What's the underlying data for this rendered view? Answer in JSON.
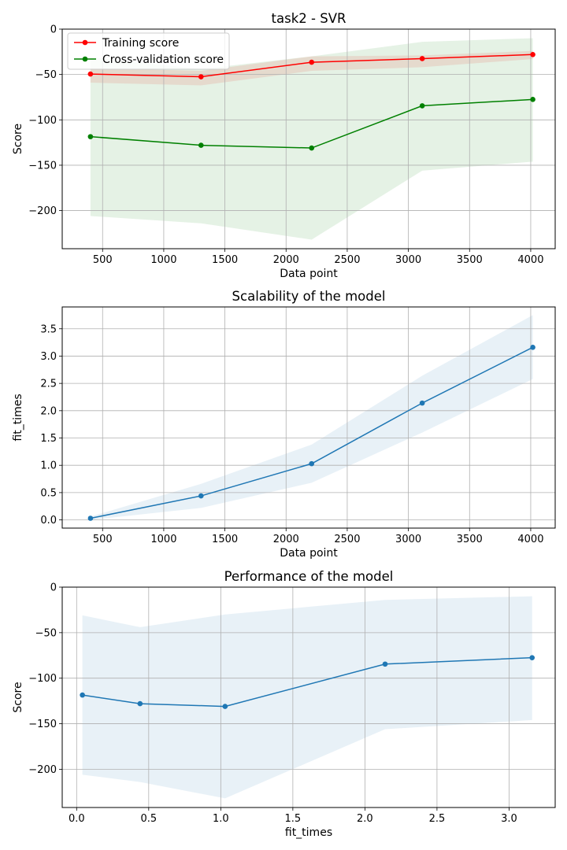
{
  "chart_data": [
    {
      "type": "line",
      "title": "task2 - SVR",
      "xlabel": "Data point",
      "ylabel": "Score",
      "xlim": [
        170,
        4200
      ],
      "ylim": [
        -242,
        0
      ],
      "xticks": [
        500,
        1000,
        1500,
        2000,
        2500,
        3000,
        3500,
        4000
      ],
      "yticks": [
        0,
        -50,
        -100,
        -150,
        -200
      ],
      "grid": true,
      "legend_position": "upper-left",
      "series": [
        {
          "name": "Training score",
          "color": "#ff0000",
          "x": [
            401,
            1305,
            2209,
            3113,
            4017
          ],
          "y": [
            -49.5,
            -52.5,
            -36.5,
            -32.5,
            -28.0
          ],
          "band_lower": [
            -59,
            -62,
            -46,
            -42,
            -33
          ],
          "band_upper": [
            -43,
            -46,
            -30,
            -29,
            -24
          ]
        },
        {
          "name": "Cross-validation score",
          "color": "#008000",
          "x": [
            401,
            1305,
            2209,
            3113,
            4017
          ],
          "y": [
            -118.5,
            -128.0,
            -131.0,
            -84.5,
            -77.5
          ],
          "band_lower": [
            -206,
            -214,
            -232,
            -156,
            -146
          ],
          "band_upper": [
            -31,
            -44,
            -30,
            -14,
            -10
          ]
        }
      ]
    },
    {
      "type": "line",
      "title": "Scalability of the model",
      "xlabel": "Data point",
      "ylabel": "fit_times",
      "xlim": [
        170,
        4200
      ],
      "ylim": [
        -0.15,
        3.9
      ],
      "xticks": [
        500,
        1000,
        1500,
        2000,
        2500,
        3000,
        3500,
        4000
      ],
      "yticks": [
        0.0,
        0.5,
        1.0,
        1.5,
        2.0,
        2.5,
        3.0,
        3.5
      ],
      "grid": true,
      "series": [
        {
          "color": "#1f77b4",
          "x": [
            401,
            1305,
            2209,
            3113,
            4017
          ],
          "y": [
            0.03,
            0.44,
            1.03,
            2.14,
            3.16
          ],
          "band_lower": [
            0.0,
            0.22,
            0.68,
            1.6,
            2.58
          ],
          "band_upper": [
            0.06,
            0.66,
            1.38,
            2.64,
            3.75
          ]
        }
      ]
    },
    {
      "type": "line",
      "title": "Performance of the model",
      "xlabel": "fit_times",
      "ylabel": "Score",
      "xlim": [
        -0.1,
        3.32
      ],
      "ylim": [
        -242,
        0
      ],
      "xticks": [
        0.0,
        0.5,
        1.0,
        1.5,
        2.0,
        2.5,
        3.0
      ],
      "yticks": [
        0,
        -50,
        -100,
        -150,
        -200
      ],
      "grid": true,
      "series": [
        {
          "color": "#1f77b4",
          "x": [
            0.04,
            0.44,
            1.03,
            2.14,
            3.16
          ],
          "y": [
            -118.5,
            -128.0,
            -131.0,
            -84.5,
            -77.5
          ],
          "band_lower": [
            -206,
            -214,
            -232,
            -156,
            -146
          ],
          "band_upper": [
            -31,
            -44,
            -30,
            -14,
            -10
          ]
        }
      ]
    }
  ]
}
